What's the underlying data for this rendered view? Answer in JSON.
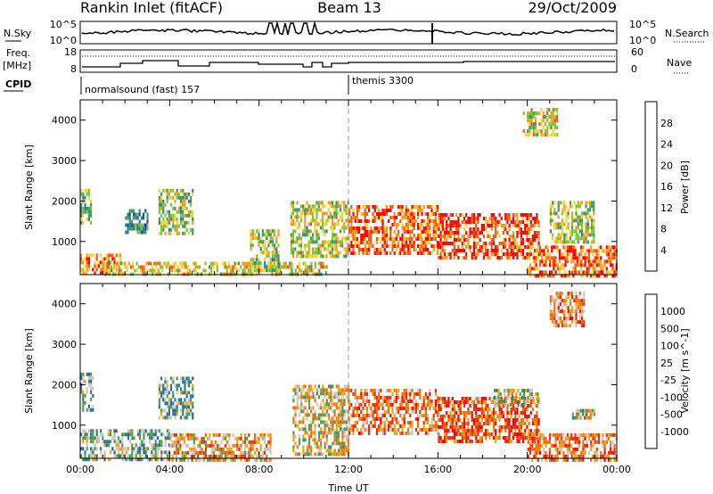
{
  "header": {
    "station": "Rankin Inlet (fitACF)",
    "beam": "Beam 13",
    "date": "29/Oct/2009"
  },
  "status_panel": {
    "nsky_label": "N.Sky",
    "nsearch_label": "N.Search",
    "freq_label": "Freq.",
    "freq_unit": "[MHz]",
    "nave_label": "Nave",
    "cpid_label": "CPID",
    "nsky_ticks": [
      "10^5",
      "10^0"
    ],
    "nsearch_ticks": [
      "10^5",
      "10^0"
    ],
    "freq_ticks": [
      "18",
      "8"
    ],
    "nave_ticks": [
      "60",
      "0"
    ],
    "cpid_segments": [
      {
        "label": "normalsound (fast) 157",
        "start_hour": 0,
        "end_hour": 12
      },
      {
        "label": "themis 3300",
        "start_hour": 12,
        "end_hour": 24
      }
    ]
  },
  "chart_data": [
    {
      "type": "heatmap",
      "title": "",
      "xlabel": "",
      "ylabel": "Slant Range [km]",
      "xlim": [
        0,
        24
      ],
      "ylim": [
        180,
        4500
      ],
      "yticks": [
        "1000",
        "2000",
        "3000",
        "4000"
      ],
      "colorbar": {
        "label": "Power [dB]",
        "ticks": [
          "4",
          "8",
          "12",
          "16",
          "20",
          "24",
          "28"
        ],
        "range": [
          0,
          30
        ],
        "colors": [
          "#0000ff",
          "#1f4fb8",
          "#2e7f8f",
          "#3f9a5c",
          "#7cc43a",
          "#f3d23a",
          "#f59a1c",
          "#f05a14",
          "#ff0000"
        ]
      },
      "echo_regions": [
        {
          "t0": 0.0,
          "t1": 1.8,
          "r0": 180,
          "r1": 700,
          "level": 0.78
        },
        {
          "t0": 1.0,
          "t1": 11.0,
          "r0": 180,
          "r1": 500,
          "level": 0.62
        },
        {
          "t0": 0.0,
          "t1": 0.5,
          "r0": 1500,
          "r1": 2300,
          "level": 0.45
        },
        {
          "t0": 2.0,
          "t1": 3.0,
          "r0": 1200,
          "r1": 1800,
          "level": 0.32
        },
        {
          "t0": 3.5,
          "t1": 5.0,
          "r0": 1200,
          "r1": 2300,
          "level": 0.5
        },
        {
          "t0": 7.6,
          "t1": 8.9,
          "r0": 300,
          "r1": 1300,
          "level": 0.5
        },
        {
          "t0": 9.4,
          "t1": 12.0,
          "r0": 600,
          "r1": 2000,
          "level": 0.55
        },
        {
          "t0": 12.0,
          "t1": 16.0,
          "r0": 700,
          "r1": 1900,
          "level": 0.82
        },
        {
          "t0": 16.0,
          "t1": 20.5,
          "r0": 600,
          "r1": 1700,
          "level": 0.86
        },
        {
          "t0": 20.0,
          "t1": 24.0,
          "r0": 180,
          "r1": 900,
          "level": 0.8
        },
        {
          "t0": 21.0,
          "t1": 23.0,
          "r0": 1000,
          "r1": 2000,
          "level": 0.55
        },
        {
          "t0": 19.8,
          "t1": 21.3,
          "r0": 3600,
          "r1": 4300,
          "level": 0.6
        }
      ]
    },
    {
      "type": "heatmap",
      "title": "",
      "xlabel": "Time UT",
      "ylabel": "Slant Range [km]",
      "xlim": [
        0,
        24
      ],
      "ylim": [
        180,
        4500
      ],
      "xticks": [
        "00:00",
        "04:00",
        "08:00",
        "12:00",
        "16:00",
        "20:00",
        "00:00"
      ],
      "yticks": [
        "1000",
        "2000",
        "3000",
        "4000"
      ],
      "colorbar": {
        "label": "Velocity [m s^-1]",
        "ticks": [
          "1000",
          "500",
          "100",
          "25",
          "-25",
          "-100",
          "-500",
          "-1000"
        ],
        "range": [
          -1000,
          1000
        ],
        "colors": [
          "#1a3ccc",
          "#2b5fb2",
          "#2e7f7a",
          "#4f9a52",
          "#c8c8c8",
          "#f0a010",
          "#f07010",
          "#e83010",
          "#ff0000"
        ]
      },
      "echo_regions": [
        {
          "t0": 0.0,
          "t1": 0.6,
          "r0": 1400,
          "r1": 2300,
          "level": 0.38
        },
        {
          "t0": 0.0,
          "t1": 4.0,
          "r0": 180,
          "r1": 900,
          "level": 0.4
        },
        {
          "t0": 3.5,
          "t1": 5.0,
          "r0": 1200,
          "r1": 2200,
          "level": 0.38
        },
        {
          "t0": 4.0,
          "t1": 8.5,
          "r0": 180,
          "r1": 800,
          "level": 0.62
        },
        {
          "t0": 9.5,
          "t1": 12.0,
          "r0": 300,
          "r1": 2000,
          "level": 0.55
        },
        {
          "t0": 12.0,
          "t1": 16.0,
          "r0": 800,
          "r1": 1900,
          "level": 0.7
        },
        {
          "t0": 16.0,
          "t1": 20.5,
          "r0": 600,
          "r1": 1700,
          "level": 0.8
        },
        {
          "t0": 18.5,
          "t1": 20.5,
          "r0": 1500,
          "r1": 1900,
          "level": 0.5
        },
        {
          "t0": 20.0,
          "t1": 24.0,
          "r0": 180,
          "r1": 800,
          "level": 0.7
        },
        {
          "t0": 22.0,
          "t1": 23.0,
          "r0": 1200,
          "r1": 1400,
          "level": 0.5
        },
        {
          "t0": 21.0,
          "t1": 22.5,
          "r0": 3500,
          "r1": 4300,
          "level": 0.7
        }
      ]
    }
  ]
}
